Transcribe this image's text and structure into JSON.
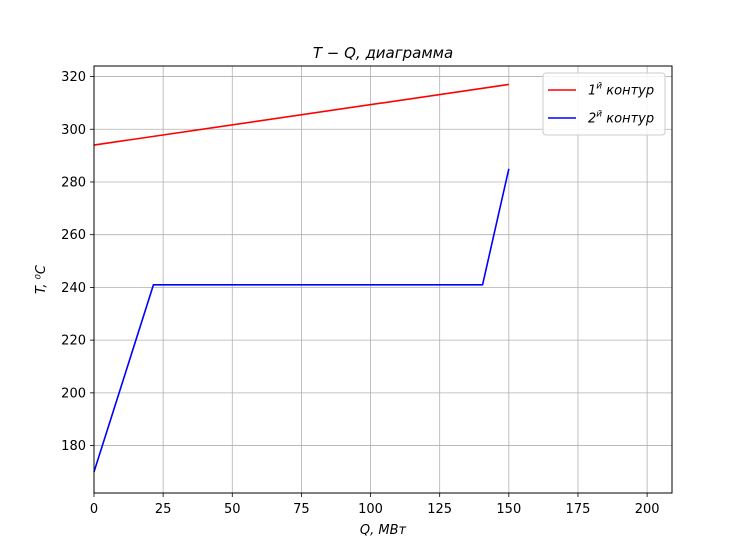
{
  "chart_data": {
    "type": "line",
    "title": "T − Q,  диаграмма",
    "xlabel": "Q, МВт",
    "ylabel": "T,  ⁰C",
    "xlim": [
      0,
      209
    ],
    "ylim": [
      162,
      324
    ],
    "xticks": [
      0,
      25,
      50,
      75,
      100,
      125,
      150,
      175,
      200
    ],
    "yticks": [
      180,
      200,
      220,
      240,
      260,
      280,
      300,
      320
    ],
    "grid": true,
    "legend_position": "upper-right",
    "series": [
      {
        "name": "1й контур",
        "legend_num": "1",
        "legend_sup": "й",
        "legend_word": "контур",
        "color": "#ff0000",
        "x": [
          0,
          150
        ],
        "y": [
          294,
          317
        ]
      },
      {
        "name": "2й контур",
        "legend_num": "2",
        "legend_sup": "й",
        "legend_word": "контур",
        "color": "#0000ff",
        "x": [
          0,
          21.5,
          140.5,
          150
        ],
        "y": [
          170,
          241,
          241,
          285
        ]
      }
    ]
  }
}
